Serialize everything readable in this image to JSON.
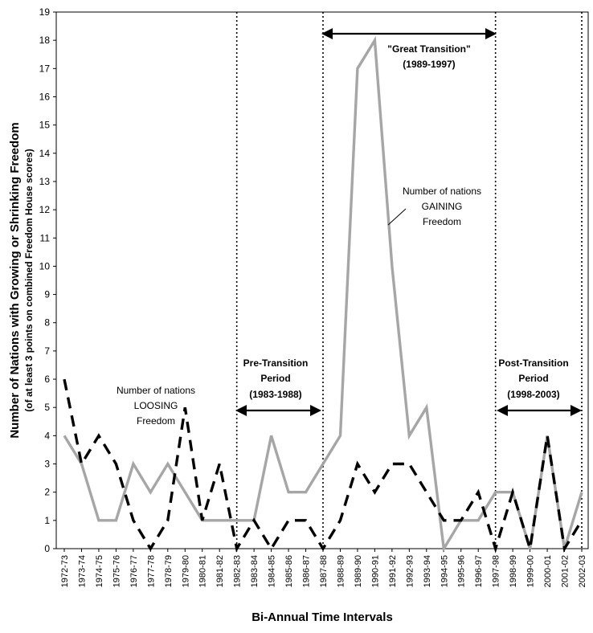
{
  "chart_data": {
    "type": "line",
    "title": "",
    "xlabel": "Bi-Annual Time Intervals",
    "ylabel": "Number of Nations with Growing or Shrinking Freedom",
    "ylabel_sub": "(of at least 3 points on combined Freedom House scores)",
    "ylim": [
      0,
      19
    ],
    "yticks": [
      0,
      1,
      2,
      3,
      4,
      5,
      6,
      7,
      8,
      9,
      10,
      11,
      12,
      13,
      14,
      15,
      16,
      17,
      18,
      19
    ],
    "categories": [
      "1972-73",
      "1973-74",
      "1974-75",
      "1975-76",
      "1976-77",
      "1977-78",
      "1978-79",
      "1979-80",
      "1980-81",
      "1981-82",
      "1982-83",
      "1983-84",
      "1984-85",
      "1985-86",
      "1986-87",
      "1987-88",
      "1988-89",
      "1989-90",
      "1990-91",
      "1991-92",
      "1992-93",
      "1993-94",
      "1994-95",
      "1995-96",
      "1996-97",
      "1997-98",
      "1998-99",
      "1999-00",
      "2000-01",
      "2001-02",
      "2002-03"
    ],
    "series": [
      {
        "name": "Number of nations GAINING Freedom",
        "style": "solid",
        "color": "#a6a6a6",
        "values": [
          4,
          3,
          1,
          1,
          3,
          2,
          3,
          2,
          1,
          1,
          1,
          1,
          4,
          2,
          2,
          3,
          4,
          17,
          18,
          10,
          4,
          5,
          0,
          1,
          1,
          2,
          2,
          0,
          4,
          0,
          2
        ]
      },
      {
        "name": "Number of nations LOOSING Freedom",
        "style": "dashed",
        "color": "#000000",
        "values": [
          6,
          3,
          4,
          3,
          1,
          0,
          1,
          5,
          1,
          3,
          0,
          1,
          0,
          1,
          1,
          0,
          1,
          3,
          2,
          3,
          3,
          2,
          1,
          1,
          2,
          0,
          2,
          0,
          4,
          0,
          1
        ]
      }
    ],
    "dividers": [
      "1982-83",
      "1987-88",
      "1997-98",
      "2002-03"
    ],
    "annotations": {
      "great_transition_line1": "\"Great Transition\"",
      "great_transition_line2": "(1989-1997)",
      "pre_line1": "Pre-Transition",
      "pre_line2": "Period",
      "pre_line3": "(1983-1988)",
      "post_line1": "Post-Transition",
      "post_line2": "Period",
      "post_line3": "(1998-2003)",
      "gaining_line1": "Number of nations",
      "gaining_line2": "GAINING",
      "gaining_line3": "Freedom",
      "loosing_line1": "Number of nations",
      "loosing_line2": "LOOSING",
      "loosing_line3": "Freedom"
    }
  }
}
